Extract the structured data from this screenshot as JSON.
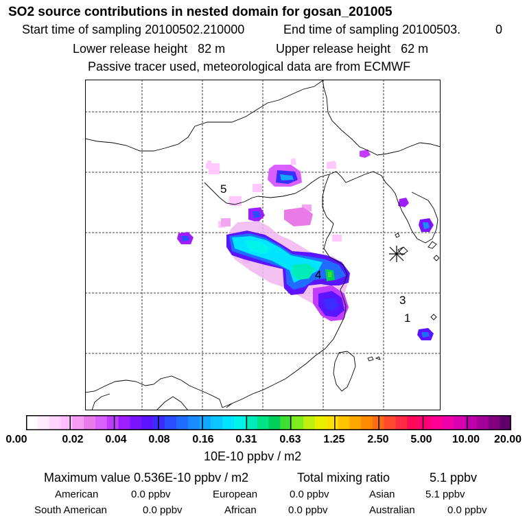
{
  "header": {
    "title": "SO2 source contributions in nested domain for gosan_201005",
    "start_label": "Start time of sampling 20100502.210000",
    "end_label": "End time of sampling 20100503.",
    "end_value": "0",
    "lower_release": "Lower release height   82 m",
    "upper_release": "Upper release height   62 m",
    "info": "Passive tracer used, meteorological data are from ECMWF"
  },
  "map": {
    "markers": [
      "5",
      "4",
      "3",
      "1"
    ],
    "station_symbol": "asterisk"
  },
  "legend": {
    "ticks": [
      "0.00",
      "0.02",
      "0.04",
      "0.08",
      "0.16",
      "0.31",
      "0.63",
      "1.25",
      "2.50",
      "5.00",
      "10.00",
      "20.00"
    ],
    "unit": "10E-10 ppbv / m2",
    "colors": [
      "#ffffff",
      "#ffeaff",
      "#ffd5ff",
      "#ffbfff",
      "#f59cf5",
      "#e97be9",
      "#d95fff",
      "#bf3cff",
      "#9e1eff",
      "#7a14ff",
      "#5a14ff",
      "#3b2cff",
      "#2a4dff",
      "#1f6cff",
      "#1a8cff",
      "#12a8ff",
      "#0cc6ff",
      "#00e4ff",
      "#00f4ec",
      "#00ebb8",
      "#00e486",
      "#00d05a",
      "#3ee036",
      "#80ec1e",
      "#bff012",
      "#e8f000",
      "#ffe000",
      "#ffc400",
      "#ffa600",
      "#ff8a00",
      "#ff6a14",
      "#ff4a2e",
      "#ff2a44",
      "#ff0a5a",
      "#ff0078",
      "#ff0096",
      "#f000a8",
      "#d800b0",
      "#c000b0",
      "#a20098",
      "#820080",
      "#62006a"
    ]
  },
  "footer": {
    "max_label": "Maximum value  0.536E-10 ppbv / m2",
    "total_label": "Total mixing ratio",
    "total_value": "5.1 ppbv",
    "regions": [
      {
        "name": "American",
        "value": "0.0 ppbv"
      },
      {
        "name": "European",
        "value": "0.0 ppbv"
      },
      {
        "name": "Asian",
        "value": "5.1 ppbv"
      },
      {
        "name": "South American",
        "value": "0.0 ppbv"
      },
      {
        "name": "African",
        "value": "0.0 ppbv"
      },
      {
        "name": "Australian",
        "value": "0.0 ppbv"
      }
    ]
  }
}
